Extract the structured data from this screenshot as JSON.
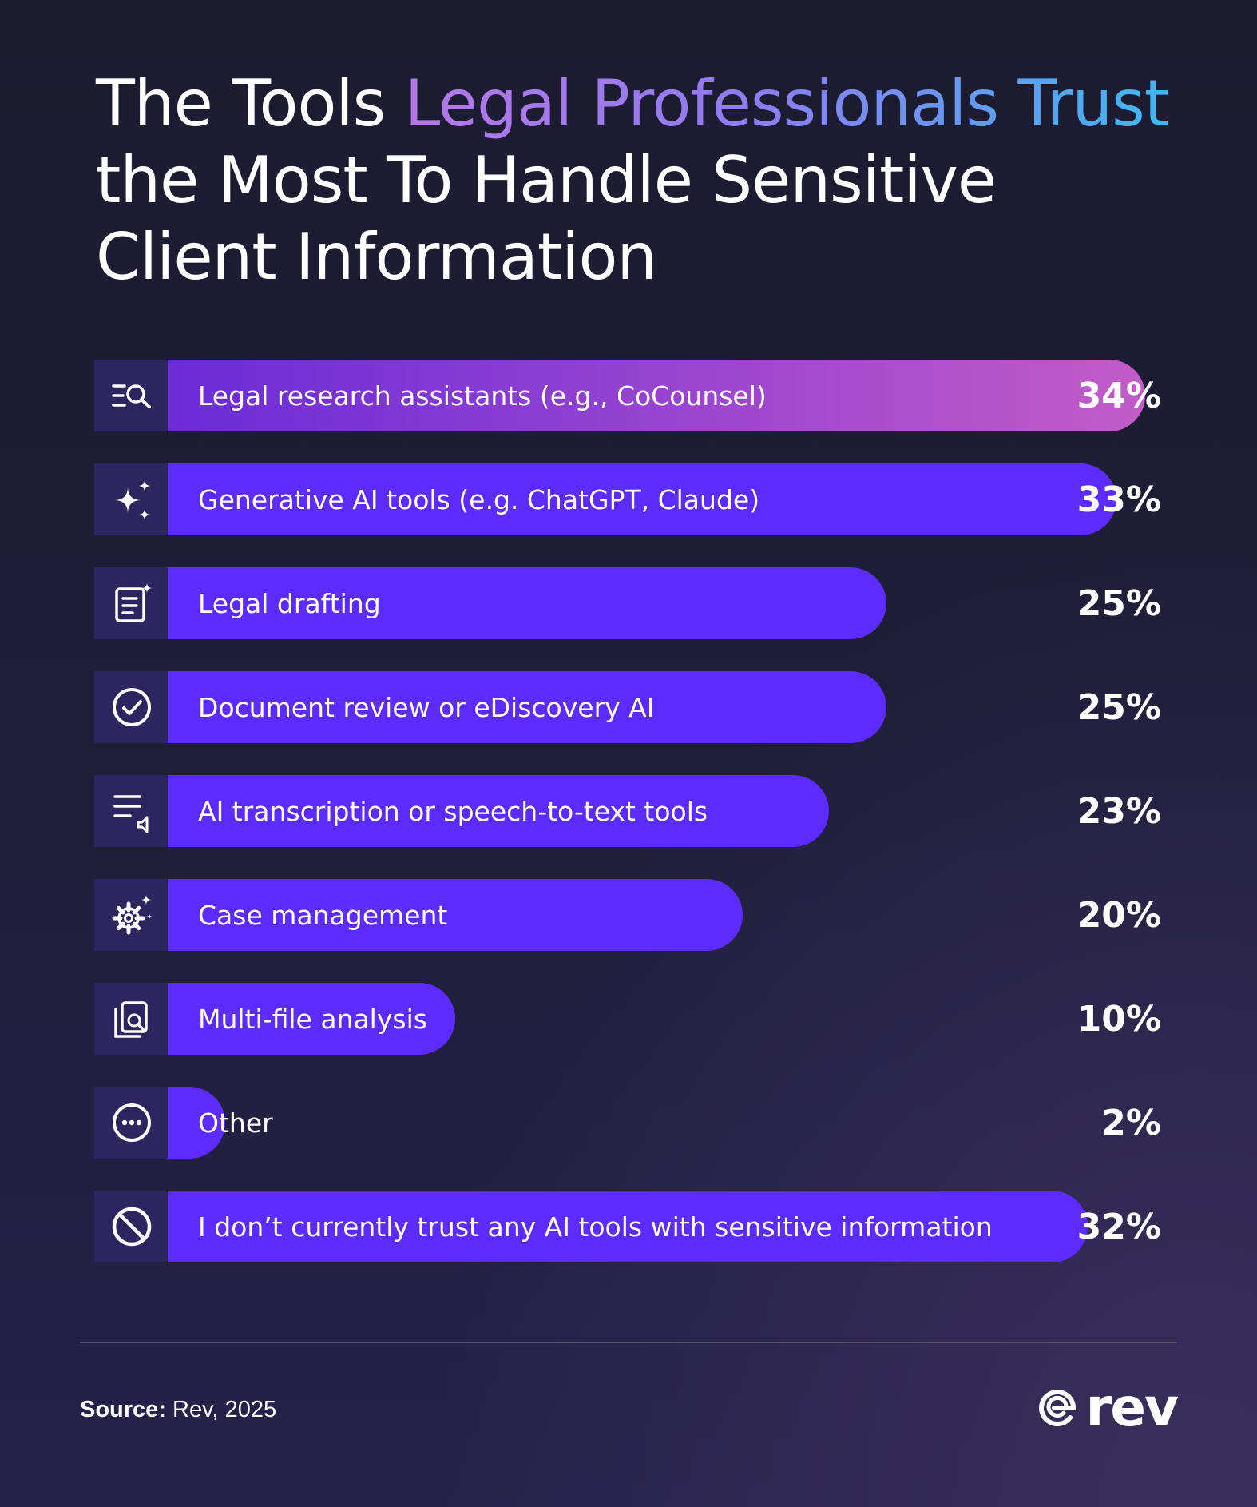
{
  "title": {
    "part1": "The Tools ",
    "accent": "Legal Professionals Trust",
    "line2": "the Most To Handle Sensitive",
    "line3": "Client Information"
  },
  "colors": {
    "bar": "#5b2bff",
    "bar_highlight_start": "#6a2bd8",
    "bar_highlight_end": "#c25cc8",
    "icon_box": "#2c2560",
    "text": "#ffffff"
  },
  "chart_data": {
    "type": "bar",
    "orientation": "horizontal",
    "categories": [
      "Legal research assistants (e.g., CoCounsel)",
      "Generative AI tools (e.g. ChatGPT, Claude)",
      "Legal drafting",
      "Document review or eDiscovery AI",
      "AI transcription or speech-to-text tools",
      "Case management",
      "Multi-file analysis",
      "Other",
      "I don’t currently trust any AI tools with sensitive information"
    ],
    "values": [
      34,
      33,
      25,
      25,
      23,
      20,
      10,
      2,
      32
    ],
    "value_labels": [
      "34%",
      "33%",
      "25%",
      "25%",
      "23%",
      "20%",
      "10%",
      "2%",
      "32%"
    ],
    "icons": [
      "search-list-icon",
      "sparkles-icon",
      "document-edit-icon",
      "check-circle-icon",
      "transcript-audio-icon",
      "gear-sparkle-icon",
      "files-search-icon",
      "more-circle-icon",
      "prohibited-icon"
    ],
    "highlight_index": 0,
    "grid": false,
    "legend": "none"
  },
  "footer": {
    "source_label": "Source:",
    "source_text": " Rev, 2025",
    "logo_text": "rev",
    "logo_icon": "rev-logo-icon"
  }
}
